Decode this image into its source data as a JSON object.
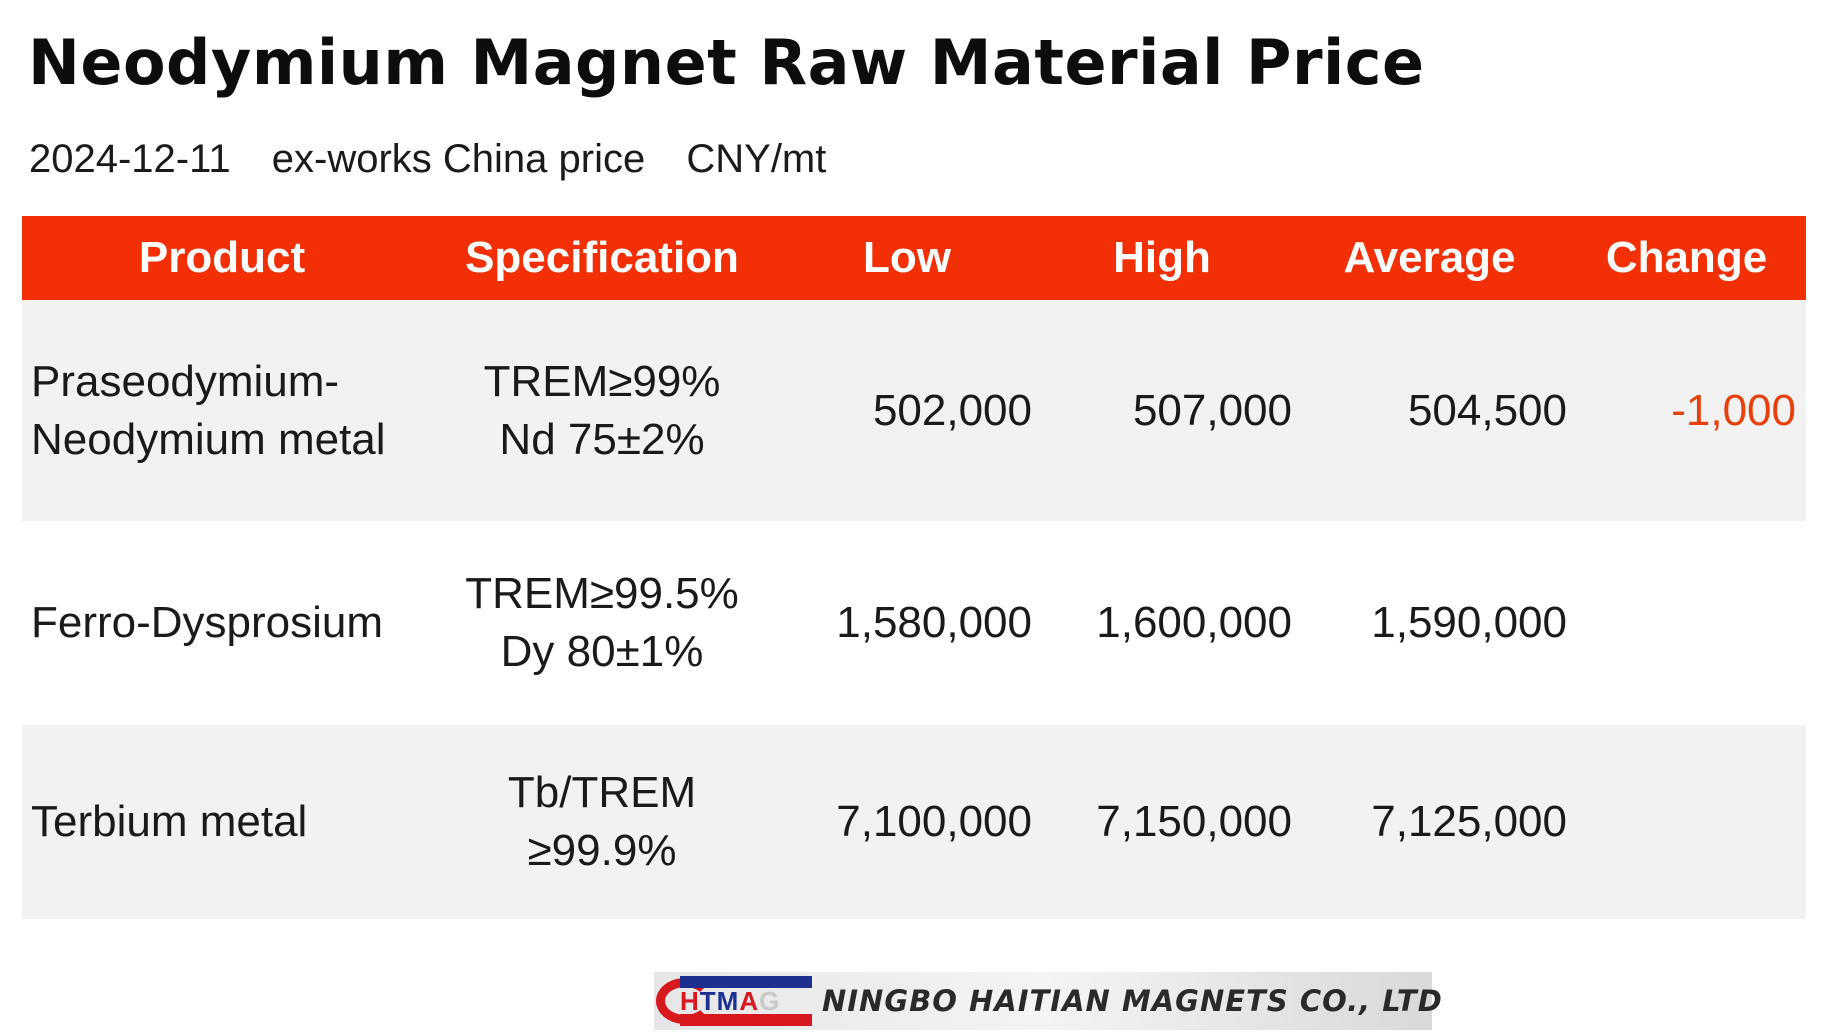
{
  "title": "Neodymium Magnet Raw Material Price",
  "subtitle": {
    "date": "2024-12-11",
    "basis": "ex-works China price",
    "unit": "CNY/mt"
  },
  "table": {
    "headers": [
      "Product",
      "Specification",
      "Low",
      "High",
      "Average",
      "Change"
    ],
    "rows": [
      {
        "product": [
          "Praseodymium-",
          "Neodymium metal"
        ],
        "spec": [
          "TREM≥99%",
          "Nd 75±2%"
        ],
        "low": "502,000",
        "high": "507,000",
        "average": "504,500",
        "change": "-1,000"
      },
      {
        "product": [
          "Ferro-Dysprosium"
        ],
        "spec": [
          "TREM≥99.5%",
          "Dy 80±1%"
        ],
        "low": "1,580,000",
        "high": "1,600,000",
        "average": "1,590,000",
        "change": ""
      },
      {
        "product": [
          "Terbium metal"
        ],
        "spec": [
          "Tb/TREM",
          "≥99.9%"
        ],
        "low": "7,100,000",
        "high": "7,150,000",
        "average": "7,125,000",
        "change": ""
      }
    ]
  },
  "colors": {
    "header_bg": "#f22f05",
    "header_text": "#ffffff",
    "row_shade": "#f2f2f2",
    "negative_change": "#e8400c"
  },
  "logo": {
    "letters": [
      "H",
      "T",
      "M",
      "A",
      "G"
    ],
    "company": "NINGBO HAITIAN MAGNETS CO., LTD"
  }
}
